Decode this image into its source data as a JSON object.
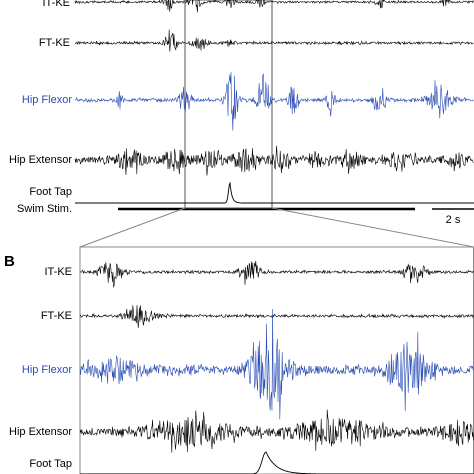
{
  "panel_a": {
    "traces": [
      "IT-KE",
      "FT-KE",
      "Hip Flexor",
      "Hip Extensor",
      "Foot Tap"
    ],
    "stimulus": "Swim Stim.",
    "scale_bar": "2 s"
  },
  "panel_b": {
    "label": "B",
    "traces": [
      "IT-KE",
      "FT-KE",
      "Hip Flexor",
      "Hip Extensor",
      "Foot Tap"
    ]
  }
}
